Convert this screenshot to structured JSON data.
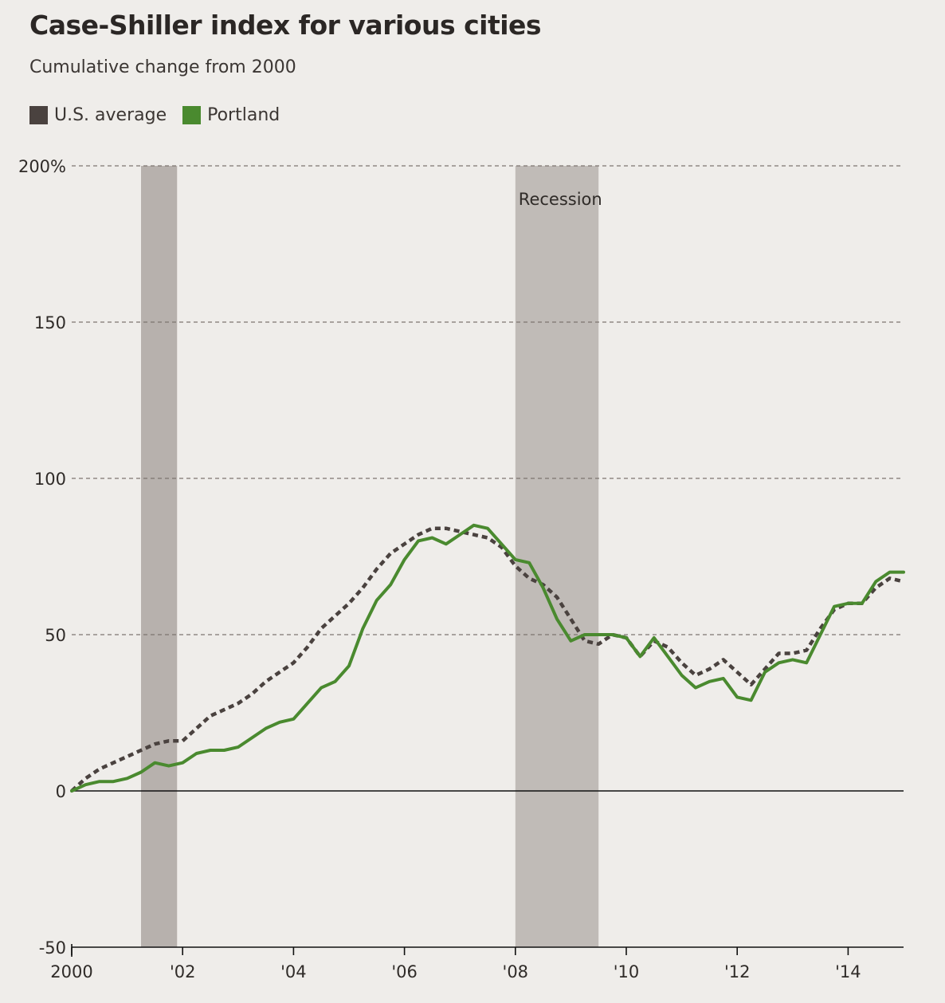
{
  "chart_data": {
    "type": "line",
    "title": "Case-Shiller index for various cities",
    "subtitle": "Cumulative change from 2000",
    "xlim": [
      2000,
      2015
    ],
    "ylim": [
      -50,
      200
    ],
    "x_ticks": [
      {
        "value": 2000,
        "label": "2000"
      },
      {
        "value": 2002,
        "label": "'02"
      },
      {
        "value": 2004,
        "label": "'04"
      },
      {
        "value": 2006,
        "label": "'06"
      },
      {
        "value": 2008,
        "label": "'08"
      },
      {
        "value": 2010,
        "label": "'10"
      },
      {
        "value": 2012,
        "label": "'12"
      },
      {
        "value": 2014,
        "label": "'14"
      }
    ],
    "y_ticks": [
      {
        "value": -50,
        "label": "-50"
      },
      {
        "value": 0,
        "label": "0"
      },
      {
        "value": 50,
        "label": "50"
      },
      {
        "value": 100,
        "label": "100"
      },
      {
        "value": 150,
        "label": "150"
      },
      {
        "value": 200,
        "label": "200%"
      }
    ],
    "grid": "horizontal dashed",
    "legend_position": "top-left",
    "recessions": [
      {
        "start": 2001.25,
        "end": 2001.9,
        "label": ""
      },
      {
        "start": 2008.0,
        "end": 2009.5,
        "label": "Recession"
      }
    ],
    "series": [
      {
        "name": "U.S. average",
        "color": "#4a423f",
        "style": "dashed",
        "x": [
          2000,
          2000.25,
          2000.5,
          2000.75,
          2001,
          2001.25,
          2001.5,
          2001.75,
          2002,
          2002.25,
          2002.5,
          2002.75,
          2003,
          2003.25,
          2003.5,
          2003.75,
          2004,
          2004.25,
          2004.5,
          2004.75,
          2005,
          2005.25,
          2005.5,
          2005.75,
          2006,
          2006.25,
          2006.5,
          2006.75,
          2007,
          2007.25,
          2007.5,
          2007.75,
          2008,
          2008.25,
          2008.5,
          2008.75,
          2009,
          2009.25,
          2009.5,
          2009.75,
          2010,
          2010.25,
          2010.5,
          2010.75,
          2011,
          2011.25,
          2011.5,
          2011.75,
          2012,
          2012.25,
          2012.5,
          2012.75,
          2013,
          2013.25,
          2013.5,
          2013.75,
          2014,
          2014.25,
          2014.5,
          2014.75,
          2015
        ],
        "y": [
          0,
          4,
          7,
          9,
          11,
          13,
          15,
          16,
          16,
          20,
          24,
          26,
          28,
          31,
          35,
          38,
          41,
          46,
          52,
          56,
          60,
          65,
          71,
          76,
          79,
          82,
          84,
          84,
          83,
          82,
          81,
          78,
          72,
          68,
          66,
          62,
          55,
          48,
          47,
          50,
          49,
          43,
          48,
          46,
          41,
          37,
          39,
          42,
          38,
          34,
          39,
          44,
          44,
          45,
          52,
          58,
          60,
          60,
          65,
          68,
          67
        ]
      },
      {
        "name": "Portland",
        "color": "#4a8a2f",
        "style": "solid",
        "x": [
          2000,
          2000.25,
          2000.5,
          2000.75,
          2001,
          2001.25,
          2001.5,
          2001.75,
          2002,
          2002.25,
          2002.5,
          2002.75,
          2003,
          2003.25,
          2003.5,
          2003.75,
          2004,
          2004.25,
          2004.5,
          2004.75,
          2005,
          2005.25,
          2005.5,
          2005.75,
          2006,
          2006.25,
          2006.5,
          2006.75,
          2007,
          2007.25,
          2007.5,
          2007.75,
          2008,
          2008.25,
          2008.5,
          2008.75,
          2009,
          2009.25,
          2009.5,
          2009.75,
          2010,
          2010.25,
          2010.5,
          2010.75,
          2011,
          2011.25,
          2011.5,
          2011.75,
          2012,
          2012.25,
          2012.5,
          2012.75,
          2013,
          2013.25,
          2013.5,
          2013.75,
          2014,
          2014.25,
          2014.5,
          2014.75,
          2015
        ],
        "y": [
          0,
          2,
          3,
          3,
          4,
          6,
          9,
          8,
          9,
          12,
          13,
          13,
          14,
          17,
          20,
          22,
          23,
          28,
          33,
          35,
          40,
          52,
          61,
          66,
          74,
          80,
          81,
          79,
          82,
          85,
          84,
          79,
          74,
          73,
          65,
          55,
          48,
          50,
          50,
          50,
          49,
          43,
          49,
          43,
          37,
          33,
          35,
          36,
          30,
          29,
          38,
          41,
          42,
          41,
          50,
          59,
          60,
          60,
          67,
          70,
          70
        ]
      }
    ]
  }
}
